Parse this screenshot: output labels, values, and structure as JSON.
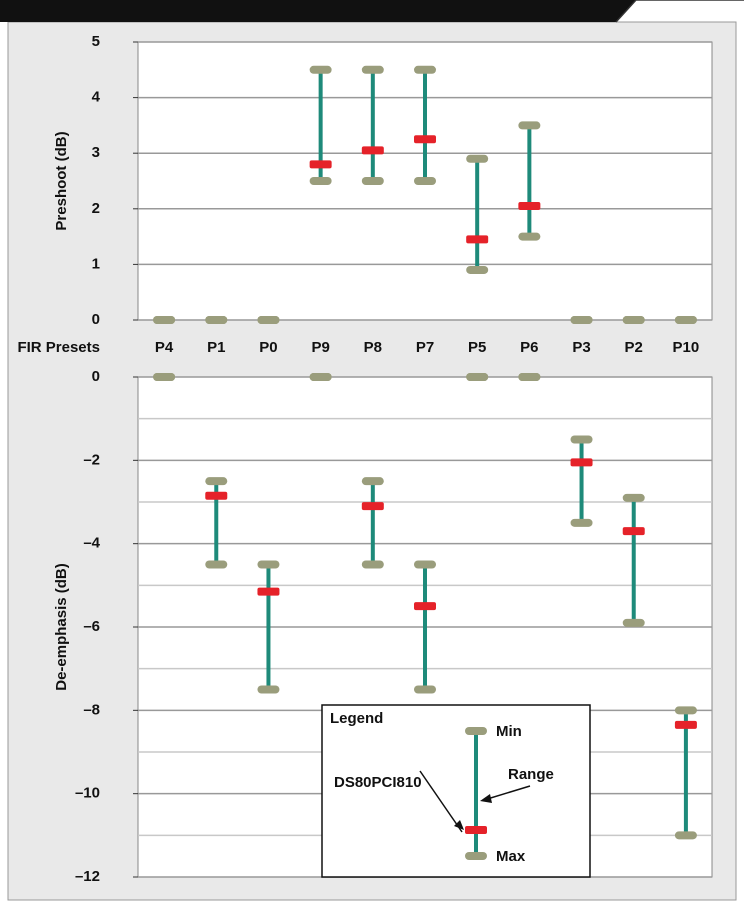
{
  "chart_data": {
    "type": "range",
    "x_label": "FIR Presets",
    "categories": [
      "P4",
      "P1",
      "P0",
      "P9",
      "P8",
      "P7",
      "P5",
      "P6",
      "P3",
      "P2",
      "P10"
    ],
    "series": [
      {
        "name": "Min",
        "color": "#9a9d7c"
      },
      {
        "name": "Max",
        "color": "#9a9d7c"
      },
      {
        "name": "DS80PCI810",
        "color": "#e52229"
      }
    ],
    "range_label": "Range",
    "range_color": "#1e8a7a",
    "legend_title": "Legend",
    "panels": [
      {
        "y_label": "Preshoot (dB)",
        "ylim": [
          0,
          5
        ],
        "yticks": [
          0,
          1,
          2,
          3,
          4,
          5
        ],
        "yminor": [],
        "series_values": [
          [
            0,
            0,
            0,
            2.5,
            2.5,
            2.5,
            0.9,
            1.5,
            0,
            0,
            0
          ],
          [
            0,
            0,
            0,
            4.5,
            4.5,
            4.5,
            2.9,
            3.5,
            0,
            0,
            0
          ],
          [
            null,
            null,
            null,
            2.8,
            3.05,
            3.25,
            1.45,
            2.05,
            null,
            null,
            null
          ]
        ]
      },
      {
        "y_label": "De-emphasis (dB)",
        "ylim": [
          -12,
          0
        ],
        "yticks": [
          {
            "value": -12,
            "label": "–12"
          },
          {
            "value": -10,
            "label": "–10"
          },
          {
            "value": -8,
            "label": "–8"
          },
          {
            "value": -6,
            "label": "–6"
          },
          {
            "value": -4,
            "label": "–4"
          },
          {
            "value": -2,
            "label": "–2"
          },
          0
        ],
        "yminor": [
          -11,
          -9,
          -7,
          -5,
          -3,
          -1
        ],
        "series_values": [
          [
            0,
            -2.5,
            -4.5,
            0,
            -2.5,
            -4.5,
            0,
            0,
            -1.5,
            -2.9,
            -8
          ],
          [
            0,
            -4.5,
            -7.5,
            0,
            -4.5,
            -7.5,
            0,
            0,
            -3.5,
            -5.9,
            -11
          ],
          [
            null,
            -2.85,
            -5.15,
            null,
            -3.1,
            -5.5,
            null,
            null,
            -2.05,
            -3.7,
            -8.35
          ]
        ]
      }
    ]
  }
}
